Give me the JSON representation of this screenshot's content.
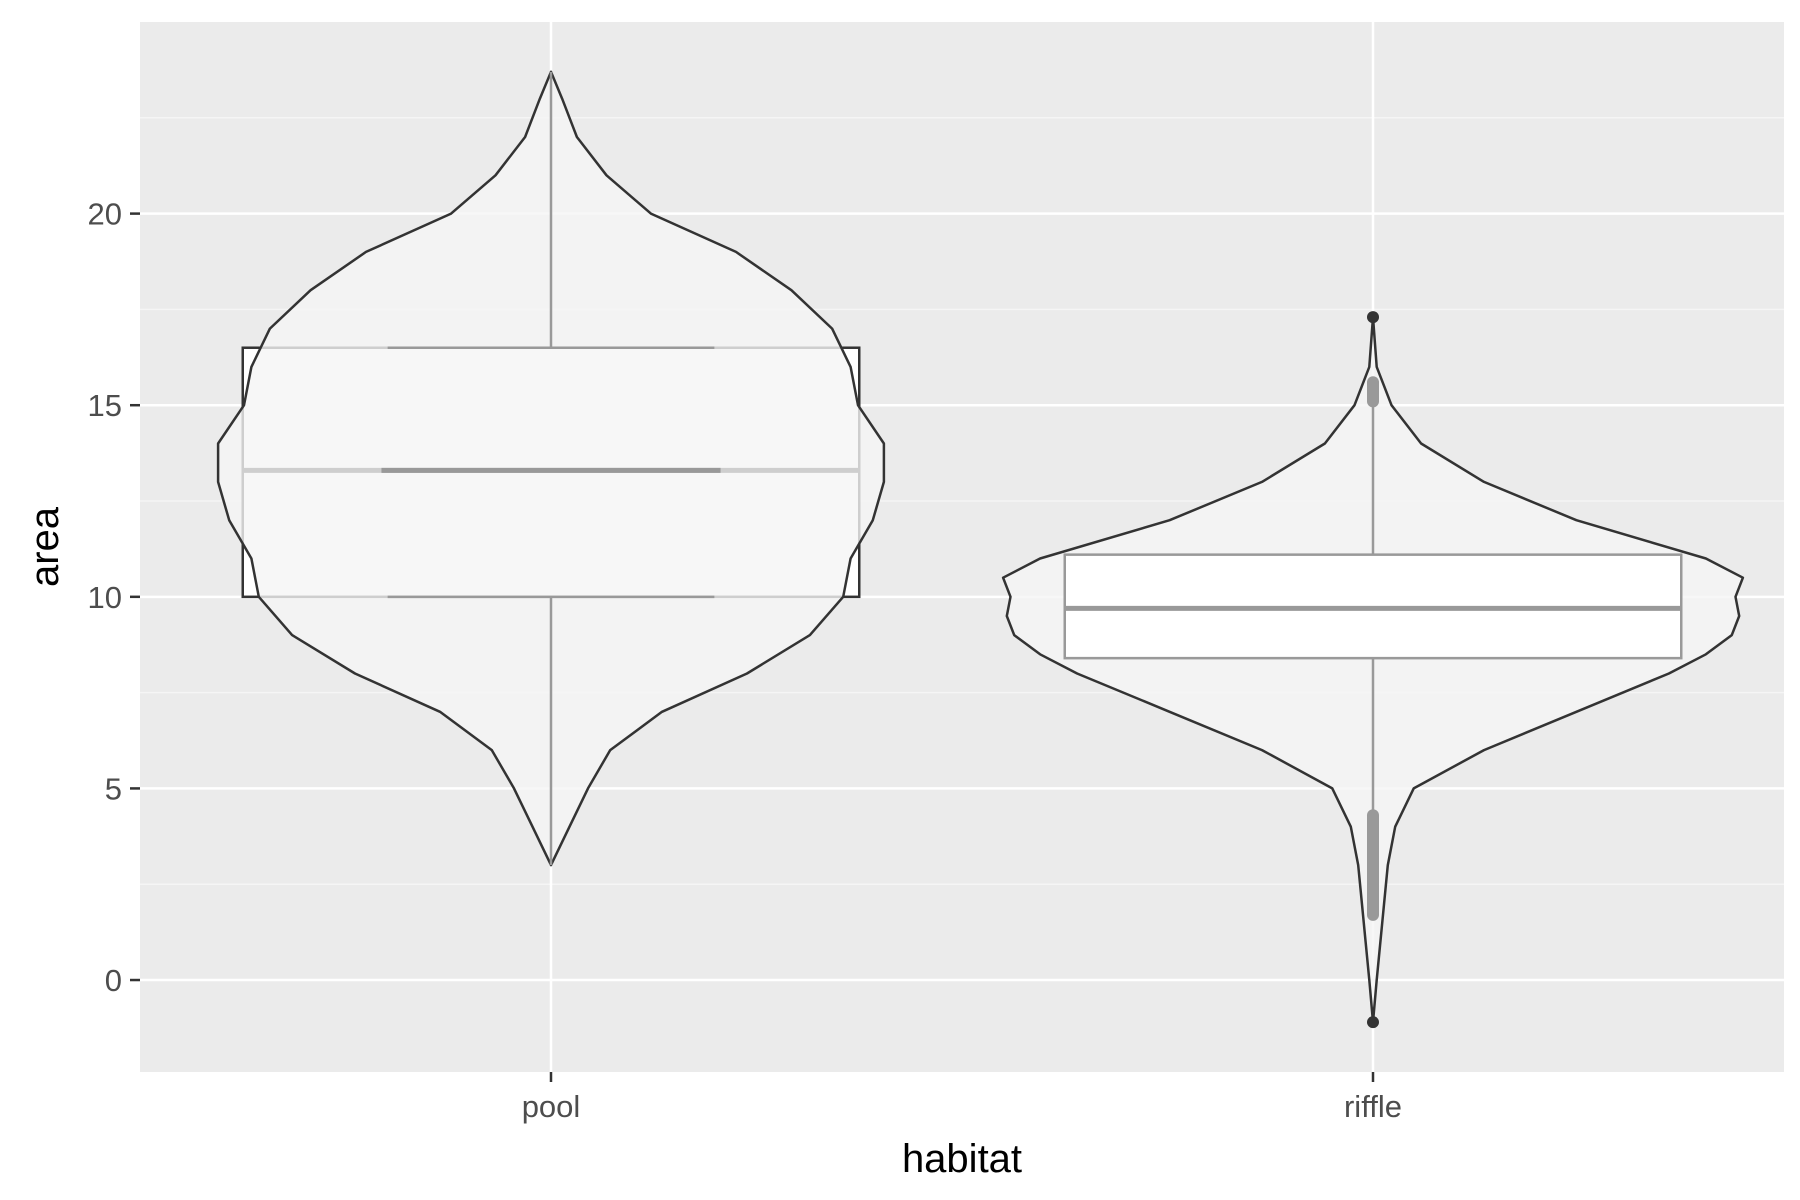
{
  "chart_data": {
    "type": "violin+boxplot",
    "xlabel": "habitat",
    "ylabel": "area",
    "categories": [
      "pool",
      "riffle"
    ],
    "ylim": [
      -2.4,
      25
    ],
    "yticks": [
      0,
      5,
      10,
      15,
      20
    ],
    "grid": true,
    "colors": {
      "panel_background": "#ebebeb",
      "grid_major": "#ffffff",
      "grid_minor": "#f5f5f5",
      "violin_fill": "#f5f5f5",
      "violin_outline": "#333333",
      "box_a_outline": "#333333",
      "box_b_outline": "#999999",
      "box_fill": "#ffffff"
    },
    "box_a": [
      {
        "category": "pool",
        "q1": 10.0,
        "median": 13.3,
        "q3": 16.5,
        "outliers": []
      },
      {
        "category": "riffle",
        "q1": 8.4,
        "median": 9.7,
        "q3": 11.1,
        "outliers": [
          -1.1,
          17.3
        ]
      }
    ],
    "box_b": [
      {
        "category": "pool",
        "whisker_low": 3.0,
        "q1": 10.0,
        "median": 13.3,
        "q3": 16.5,
        "whisker_high": 23.7
      },
      {
        "category": "riffle",
        "whisker_low": 4.2,
        "q1": 8.4,
        "median": 9.7,
        "q3": 11.1,
        "whisker_high": 15.1,
        "outlier_range_low": [
          1.7,
          4.3
        ],
        "outlier_range_high": [
          15.1,
          15.6
        ]
      }
    ],
    "violins": [
      {
        "category": "pool",
        "min": 3.0,
        "max": 23.7,
        "profile": [
          [
            3.0,
            0.0
          ],
          [
            4.0,
            0.05
          ],
          [
            5.0,
            0.1
          ],
          [
            6.0,
            0.16
          ],
          [
            7.0,
            0.3
          ],
          [
            8.0,
            0.53
          ],
          [
            9.0,
            0.7
          ],
          [
            10.0,
            0.79
          ],
          [
            11.0,
            0.81
          ],
          [
            12.0,
            0.87
          ],
          [
            13.0,
            0.9
          ],
          [
            14.0,
            0.9
          ],
          [
            15.0,
            0.83
          ],
          [
            16.0,
            0.81
          ],
          [
            17.0,
            0.76
          ],
          [
            18.0,
            0.65
          ],
          [
            19.0,
            0.5
          ],
          [
            20.0,
            0.27
          ],
          [
            21.0,
            0.15
          ],
          [
            22.0,
            0.07
          ],
          [
            23.0,
            0.03
          ],
          [
            23.7,
            0.0
          ]
        ]
      },
      {
        "category": "riffle",
        "min": -1.1,
        "max": 17.3,
        "profile": [
          [
            -1.1,
            0.0
          ],
          [
            0.0,
            0.01
          ],
          [
            1.0,
            0.02
          ],
          [
            2.0,
            0.03
          ],
          [
            3.0,
            0.04
          ],
          [
            4.0,
            0.06
          ],
          [
            5.0,
            0.11
          ],
          [
            6.0,
            0.3
          ],
          [
            7.0,
            0.55
          ],
          [
            8.0,
            0.8
          ],
          [
            8.5,
            0.9
          ],
          [
            9.0,
            0.97
          ],
          [
            9.5,
            0.99
          ],
          [
            10.0,
            0.98
          ],
          [
            10.5,
            1.0
          ],
          [
            11.0,
            0.9
          ],
          [
            12.0,
            0.55
          ],
          [
            13.0,
            0.3
          ],
          [
            14.0,
            0.13
          ],
          [
            15.0,
            0.05
          ],
          [
            16.0,
            0.01
          ],
          [
            17.3,
            0.0
          ]
        ]
      }
    ]
  }
}
